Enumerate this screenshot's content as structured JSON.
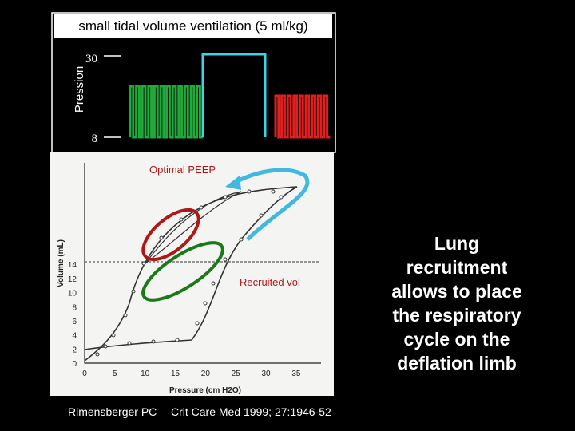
{
  "top_panel": {
    "title": "small tidal volume ventilation (5 ml/kg)",
    "ylabel": "Pression",
    "ytick_high": "30",
    "ytick_low": "8",
    "colors": {
      "green": "#1faa3a",
      "cyan": "#3cd2e8",
      "red": "#e02020",
      "frame": "#ffffff"
    }
  },
  "loop_chart": {
    "annotations": {
      "optimal_peep": "Optimal PEEP",
      "recruited_vol": "Recruited vol"
    },
    "xlabel": "Pressure (cm H2O)",
    "ylabel": "Volume (mL)",
    "xticks": [
      "0",
      "5",
      "10",
      "15",
      "20",
      "25",
      "30",
      "35"
    ],
    "yticks": [
      "0",
      "2",
      "4",
      "6",
      "8",
      "10",
      "12",
      "14"
    ],
    "colors": {
      "red_loop": "#b01818",
      "green_loop": "#1a7a1a",
      "cyan_arrow": "#40b8e0"
    }
  },
  "side_text": {
    "lines": [
      "Lung",
      "recruitment",
      "allows to place",
      "the respiratory",
      "cycle on the",
      "deflation limb"
    ]
  },
  "citation": {
    "author": "Rimensberger PC",
    "journal": "Crit Care Med 1999; 27:1946-52"
  }
}
